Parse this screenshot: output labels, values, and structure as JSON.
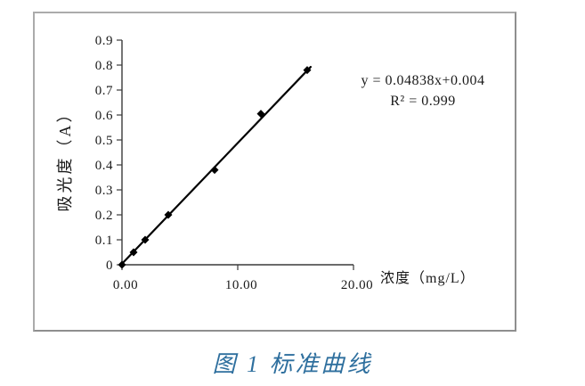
{
  "chart_data": {
    "type": "scatter",
    "title": "",
    "xlabel": "浓度（mg/L）",
    "ylabel": "吸光度（A）",
    "xlim": [
      0,
      20
    ],
    "ylim": [
      0,
      0.9
    ],
    "grid": false,
    "legend": "none",
    "marker": "diamond",
    "x_ticks": [
      {
        "value": 0,
        "label": "0.00"
      },
      {
        "value": 10,
        "label": "10.00"
      },
      {
        "value": 20,
        "label": "20.00"
      }
    ],
    "y_ticks": [
      {
        "value": 0,
        "label": "0"
      },
      {
        "value": 0.1,
        "label": "0.1"
      },
      {
        "value": 0.2,
        "label": "0.2"
      },
      {
        "value": 0.3,
        "label": "0.3"
      },
      {
        "value": 0.4,
        "label": "0.4"
      },
      {
        "value": 0.5,
        "label": "0.5"
      },
      {
        "value": 0.6,
        "label": "0.6"
      },
      {
        "value": 0.7,
        "label": "0.7"
      },
      {
        "value": 0.8,
        "label": "0.8"
      },
      {
        "value": 0.9,
        "label": "0.9"
      }
    ],
    "points": [
      {
        "x": 0,
        "y": 0
      },
      {
        "x": 1,
        "y": 0.05
      },
      {
        "x": 2,
        "y": 0.1
      },
      {
        "x": 4,
        "y": 0.2
      },
      {
        "x": 8,
        "y": 0.38
      },
      {
        "x": 12,
        "y": 0.605
      },
      {
        "x": 16,
        "y": 0.78
      }
    ],
    "trendline": {
      "slope": 0.04838,
      "intercept": 0.004,
      "x_start": 0,
      "x_end": 16.3
    },
    "annotation": {
      "line1": "y = 0.04838x+0.004",
      "line2": "R² = 0.999"
    }
  },
  "caption": {
    "text": "图 1  标准曲线"
  },
  "colors": {
    "axis": "#3a3a3a",
    "line": "#000000",
    "marker": "#000000",
    "tick_label": "#1a1a1a",
    "frame_border": "#9e9e9e",
    "caption": "#2e6f9e",
    "background": "#ffffff"
  }
}
